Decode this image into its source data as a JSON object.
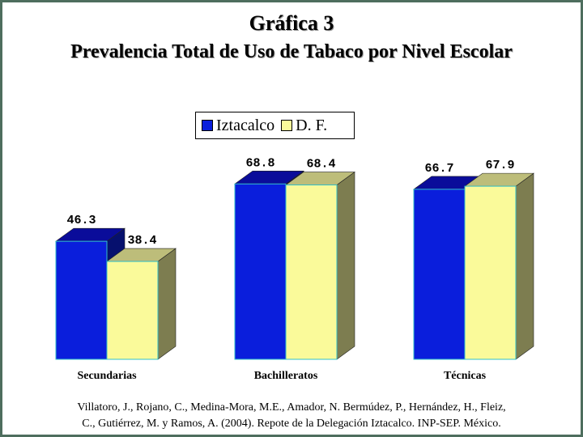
{
  "header": {
    "title": "Gráfica 3",
    "subtitle": "Prevalencia Total de Uso de Tabaco por Nivel Escolar"
  },
  "legend": {
    "items": [
      {
        "label": "Iztacalco",
        "color": "#0a1edc"
      },
      {
        "label": "D. F.",
        "color": "#fafa9a"
      }
    ]
  },
  "chart_data": {
    "type": "bar",
    "categories": [
      "Secundarias",
      "Bachilleratos",
      "Técnicas"
    ],
    "series": [
      {
        "name": "Iztacalco",
        "values": [
          46.3,
          68.8,
          66.7
        ],
        "labels": [
          "46.3",
          "68.8",
          "66.7"
        ]
      },
      {
        "name": "D. F.",
        "values": [
          38.4,
          68.4,
          67.9
        ],
        "labels": [
          "38.4",
          "68.4",
          "67.9"
        ]
      }
    ],
    "style": "3d-columns",
    "grid": false,
    "legend_position": "top-center"
  },
  "citation": {
    "line1": "Villatoro, J., Rojano, C., Medina-Mora, M.E., Amador, N. Bermúdez, P., Hernández, H., Fleiz,",
    "line2": "C., Gutiérrez, M. y Ramos, A. (2004). Repote de la Delegación Iztacalco. INP-SEP. México."
  },
  "colors": {
    "frame": "#4e6e5e",
    "series1_front": "#0a1edc",
    "series1_top": "#0a0c9a",
    "series1_side": "#06106e",
    "series2_front": "#fafa9a",
    "series2_top": "#bdbd7a",
    "series2_side": "#7d7d50"
  }
}
